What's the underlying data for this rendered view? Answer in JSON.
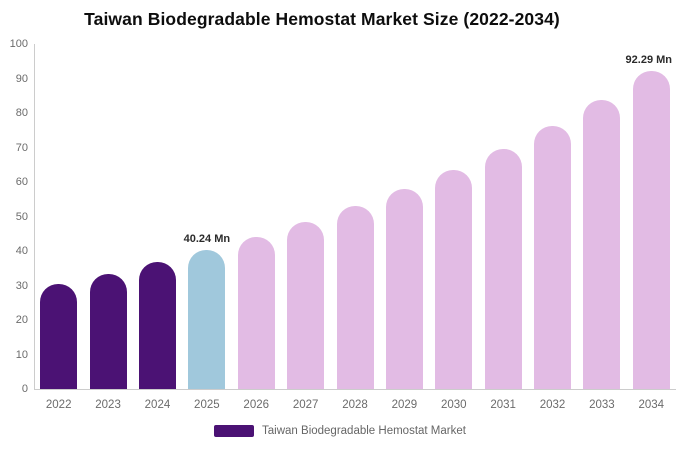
{
  "header": {
    "title": "Taiwan Biodegradable Hemostat Market Size (2022-2034)"
  },
  "legend": {
    "label": "Taiwan Biodegradable Hemostat Market",
    "swatch_color": "#4B1274"
  },
  "colors": {
    "historical_bar": "#4B1274",
    "highlight_bar": "#A0C8DC",
    "forecast_bar": "#E2BBE4",
    "axis_line": "#cccccc",
    "tick_text": "#6b6b6b",
    "title_text": "#0d0d0d",
    "value_label_text": "#2b2b2b"
  },
  "chart_data": {
    "type": "bar",
    "title": "Taiwan Biodegradable Hemostat Market Size (2022-2034)",
    "xlabel": "",
    "ylabel": "",
    "unit": "Mn",
    "categories": [
      "2022",
      "2023",
      "2024",
      "2025",
      "2026",
      "2027",
      "2028",
      "2029",
      "2030",
      "2031",
      "2032",
      "2033",
      "2034"
    ],
    "values": [
      30.4,
      33.4,
      36.7,
      40.24,
      44.1,
      48.3,
      52.9,
      58.0,
      63.5,
      69.7,
      76.3,
      83.9,
      92.29
    ],
    "bar_colors": [
      "#4B1274",
      "#4B1274",
      "#4B1274",
      "#A0C8DC",
      "#E2BBE4",
      "#E2BBE4",
      "#E2BBE4",
      "#E2BBE4",
      "#E2BBE4",
      "#E2BBE4",
      "#E2BBE4",
      "#E2BBE4",
      "#E2BBE4"
    ],
    "ylim": [
      0,
      100
    ],
    "yticks": [
      0,
      10,
      20,
      30,
      40,
      50,
      60,
      70,
      80,
      90,
      100
    ],
    "grid": false,
    "legend_position": "bottom",
    "legend_entries": [
      "Taiwan Biodegradable Hemostat Market"
    ],
    "annotations": [
      {
        "category": "2025",
        "index": 3,
        "text": "40.24 Mn"
      },
      {
        "category": "2034",
        "index": 12,
        "text": "92.29 Mn"
      }
    ]
  }
}
